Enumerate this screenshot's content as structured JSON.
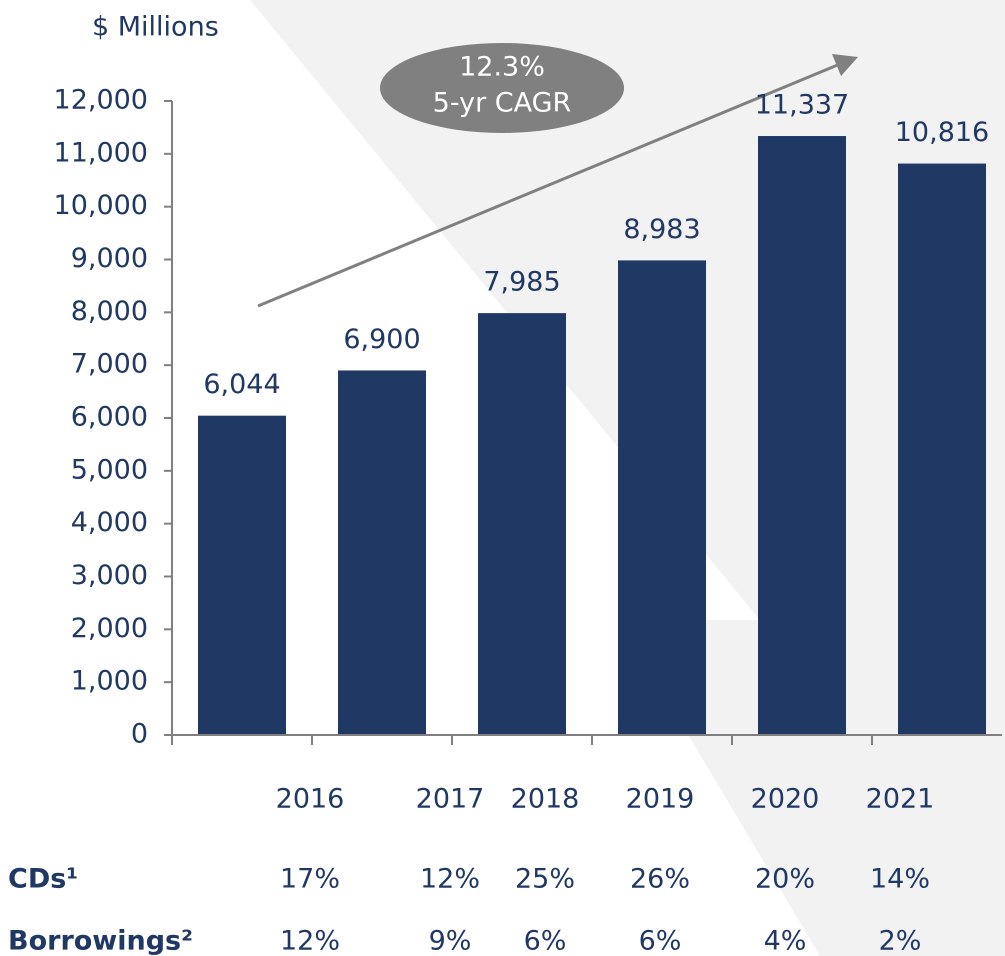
{
  "chart_data": {
    "type": "bar",
    "y_axis_label": "$ Millions",
    "annotation": {
      "line1": "12.3%",
      "line2": "5-yr CAGR"
    },
    "categories": [
      "2016",
      "2017",
      "2018",
      "2019",
      "2020",
      "2021"
    ],
    "values": [
      6044,
      6900,
      7985,
      8983,
      11337,
      10816
    ],
    "value_labels": [
      "6,044",
      "6,900",
      "7,985",
      "8,983",
      "11,337",
      "10,816"
    ],
    "color": "#203864",
    "ylim": [
      0,
      12000
    ],
    "yticks": [
      0,
      {
        "value": 1000,
        "label": "1,000"
      },
      {
        "value": 2000,
        "label": "2,000"
      },
      {
        "value": 3000,
        "label": "3,000"
      },
      {
        "value": 4000,
        "label": "4,000"
      },
      {
        "value": 5000,
        "label": "5,000"
      },
      {
        "value": 6000,
        "label": "6,000"
      },
      {
        "value": 7000,
        "label": "7,000"
      },
      {
        "value": 8000,
        "label": "8,000"
      },
      {
        "value": 9000,
        "label": "9,000"
      },
      {
        "value": 10000,
        "label": "10,000"
      },
      {
        "value": 11000,
        "label": "11,000"
      },
      {
        "value": 12000,
        "label": "12,000"
      }
    ],
    "grid": false,
    "table": [
      {
        "label": "CDs¹",
        "values": [
          "17%",
          "12%",
          "25%",
          "26%",
          "20%",
          "14%"
        ]
      },
      {
        "label": "Borrowings²",
        "values": [
          "12%",
          "9%",
          "6%",
          "6%",
          "4%",
          "2%"
        ]
      }
    ]
  }
}
